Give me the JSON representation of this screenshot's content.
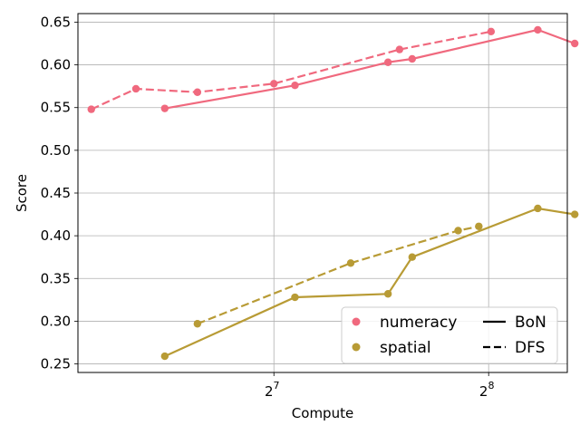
{
  "chart_data": {
    "type": "line",
    "xlabel": "Compute",
    "ylabel": "Score",
    "x_scale": "log2",
    "xlim": [
      68,
      330
    ],
    "ylim": [
      0.24,
      0.66
    ],
    "grid": true,
    "legend_position": "lower-right",
    "x_ticks": [
      {
        "value": 128,
        "base": "2",
        "exp": "7"
      },
      {
        "value": 256,
        "base": "2",
        "exp": "8"
      }
    ],
    "y_ticks": [
      0.25,
      0.3,
      0.35,
      0.4,
      0.45,
      0.5,
      0.55,
      0.6,
      0.65
    ],
    "y_tick_labels": [
      "0.25",
      "0.30",
      "0.35",
      "0.40",
      "0.45",
      "0.50",
      "0.55",
      "0.60",
      "0.65"
    ],
    "series": [
      {
        "name": "numeracy",
        "method": "BoN",
        "color": "#f0697e",
        "x": [
          90,
          137,
          185,
          200,
          300,
          338
        ],
        "y": [
          0.549,
          0.576,
          0.603,
          0.607,
          0.641,
          0.625
        ]
      },
      {
        "name": "numeracy",
        "method": "DFS",
        "color": "#f0697e",
        "x": [
          71,
          82,
          100,
          128,
          192,
          258
        ],
        "y": [
          0.548,
          0.572,
          0.568,
          0.578,
          0.618,
          0.639
        ]
      },
      {
        "name": "spatial",
        "method": "BoN",
        "color": "#b89b35",
        "x": [
          90,
          137,
          185,
          200,
          300,
          338
        ],
        "y": [
          0.259,
          0.328,
          0.332,
          0.375,
          0.432,
          0.425
        ]
      },
      {
        "name": "spatial",
        "method": "DFS",
        "color": "#b89b35",
        "x": [
          100,
          164,
          232,
          248
        ],
        "y": [
          0.297,
          0.368,
          0.406,
          0.411
        ]
      }
    ],
    "legend": {
      "categories": [
        {
          "label": "numeracy",
          "color": "#f0697e"
        },
        {
          "label": "spatial",
          "color": "#b89b35"
        }
      ],
      "styles": [
        {
          "label": "BoN",
          "dash": "solid"
        },
        {
          "label": "DFS",
          "dash": "dashed"
        }
      ]
    }
  }
}
